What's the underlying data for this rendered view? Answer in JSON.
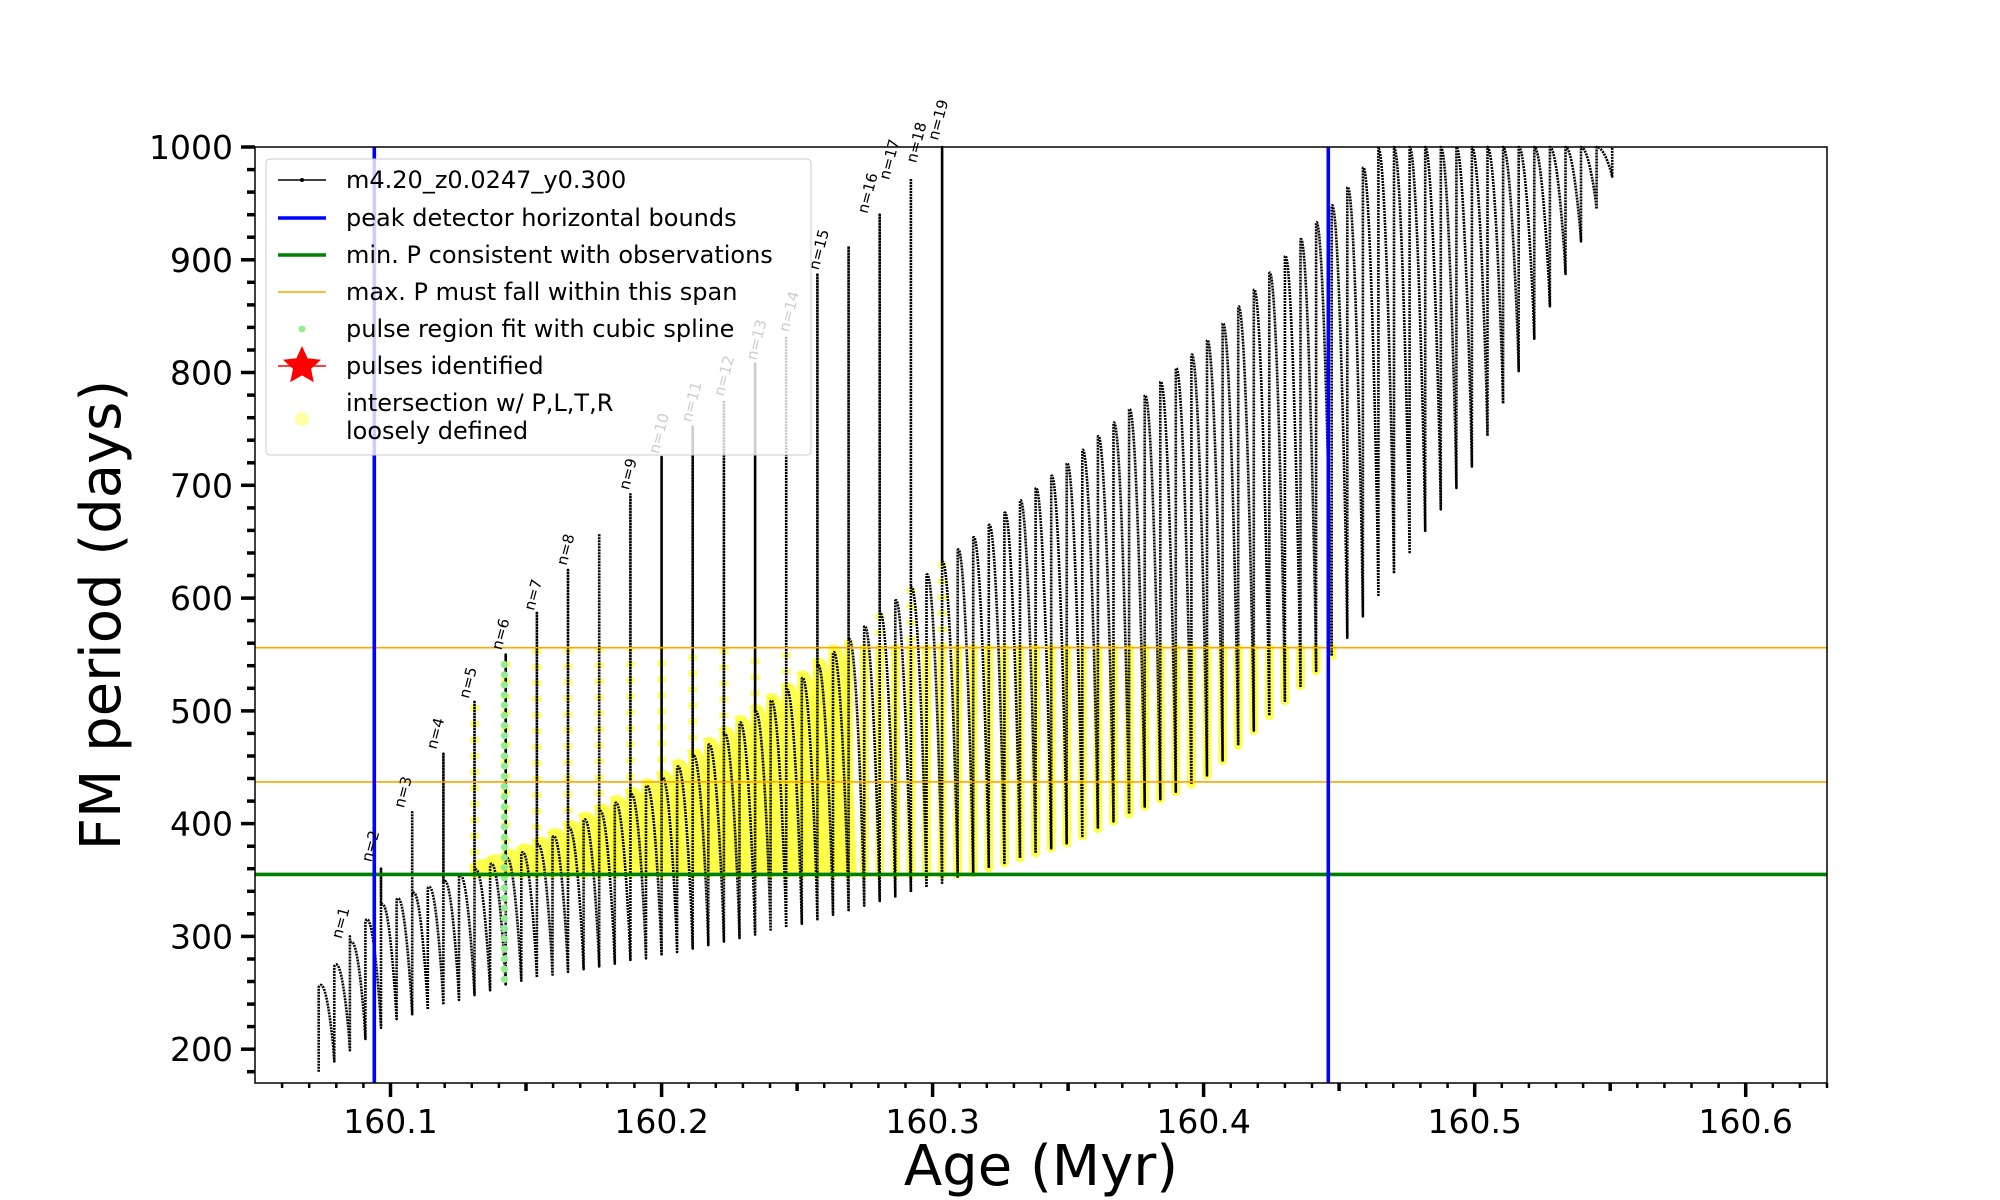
{
  "chart_data": {
    "type": "scatter",
    "title": "",
    "xlabel": "Age (Myr)",
    "ylabel": "FM period (days)",
    "xlim": [
      160.05,
      160.63
    ],
    "ylim": [
      170,
      1000
    ],
    "xticks": [
      "160.1",
      "160.2",
      "160.3",
      "160.4",
      "160.5",
      "160.6"
    ],
    "yticks": [
      "200",
      "300",
      "400",
      "500",
      "600",
      "700",
      "800",
      "900",
      "1000"
    ],
    "legend_position": "upper-left",
    "legend": [
      {
        "label": "m4.20_z0.0247_y0.300",
        "marker": "line-dot",
        "color": "#000000"
      },
      {
        "label": "peak detector horizontal bounds",
        "marker": "line",
        "color": "#0000ff"
      },
      {
        "label": "min. P consistent with observations",
        "marker": "line",
        "color": "#008000"
      },
      {
        "label": "max. P must fall within this span",
        "marker": "line",
        "color": "#ffa500"
      },
      {
        "label": "pulse region fit with cubic spline",
        "marker": "dot",
        "color": "#90ee90"
      },
      {
        "label": "pulses identified",
        "marker": "star",
        "color": "#ff0000"
      },
      {
        "label": "intersection w/ P,L,T,R",
        "label2": "loosely defined",
        "marker": "dot",
        "color": "#ffff66"
      }
    ],
    "vlines": [
      160.094,
      160.446
    ],
    "min_period_line": 355,
    "max_period_span": [
      437,
      556
    ],
    "pulse_labels": [
      {
        "text": "n=1",
        "x": 160.083,
        "y": 292
      },
      {
        "text": "n=2",
        "x": 160.094,
        "y": 360
      },
      {
        "text": "n=3",
        "x": 160.106,
        "y": 408
      },
      {
        "text": "n=4",
        "x": 160.118,
        "y": 460
      },
      {
        "text": "n=5",
        "x": 160.13,
        "y": 505
      },
      {
        "text": "n=6",
        "x": 160.142,
        "y": 548
      },
      {
        "text": "n=7",
        "x": 160.154,
        "y": 583
      },
      {
        "text": "n=8",
        "x": 160.166,
        "y": 623
      },
      {
        "text": "n=9",
        "x": 160.189,
        "y": 690
      },
      {
        "text": "n=10",
        "x": 160.2,
        "y": 722
      },
      {
        "text": "n=11",
        "x": 160.212,
        "y": 750
      },
      {
        "text": "n=12",
        "x": 160.224,
        "y": 773
      },
      {
        "text": "n=13",
        "x": 160.236,
        "y": 805
      },
      {
        "text": "n=14",
        "x": 160.248,
        "y": 830
      },
      {
        "text": "n=15",
        "x": 160.259,
        "y": 885
      },
      {
        "text": "n=16",
        "x": 160.277,
        "y": 935
      },
      {
        "text": "n=17",
        "x": 160.285,
        "y": 965
      },
      {
        "text": "n=18",
        "x": 160.295,
        "y": 980
      },
      {
        "text": "n=19",
        "x": 160.303,
        "y": 1000
      }
    ],
    "series": [
      {
        "name": "m4.20_z0.0247_y0.300",
        "type": "pulses",
        "x_start": 160.0735,
        "x_end": 160.554,
        "spacing": 0.00575,
        "trough_values": [
          {
            "x": 160.074,
            "y": 180
          },
          {
            "x": 160.1,
            "y": 225
          },
          {
            "x": 160.15,
            "y": 262
          },
          {
            "x": 160.2,
            "y": 283
          },
          {
            "x": 160.25,
            "y": 310
          },
          {
            "x": 160.3,
            "y": 345
          },
          {
            "x": 160.35,
            "y": 383
          },
          {
            "x": 160.4,
            "y": 440
          },
          {
            "x": 160.45,
            "y": 555
          },
          {
            "x": 160.5,
            "y": 720
          },
          {
            "x": 160.554,
            "y": 990
          }
        ],
        "envelope_values": [
          {
            "x": 160.074,
            "y": 255
          },
          {
            "x": 160.094,
            "y": 325
          },
          {
            "x": 160.15,
            "y": 375
          },
          {
            "x": 160.2,
            "y": 440
          },
          {
            "x": 160.25,
            "y": 525
          },
          {
            "x": 160.3,
            "y": 625
          },
          {
            "x": 160.35,
            "y": 720
          },
          {
            "x": 160.4,
            "y": 825
          },
          {
            "x": 160.45,
            "y": 955
          },
          {
            "x": 160.465,
            "y": 1000
          }
        ],
        "spike_values": [
          {
            "x": 160.083,
            "y": 300
          },
          {
            "x": 160.094,
            "y": 360
          },
          {
            "x": 160.106,
            "y": 410
          },
          {
            "x": 160.118,
            "y": 462
          },
          {
            "x": 160.13,
            "y": 508
          },
          {
            "x": 160.142,
            "y": 550
          },
          {
            "x": 160.154,
            "y": 588
          },
          {
            "x": 160.166,
            "y": 625
          },
          {
            "x": 160.177,
            "y": 657
          },
          {
            "x": 160.189,
            "y": 692
          },
          {
            "x": 160.2,
            "y": 725
          },
          {
            "x": 160.212,
            "y": 752
          },
          {
            "x": 160.224,
            "y": 775
          },
          {
            "x": 160.236,
            "y": 808
          },
          {
            "x": 160.248,
            "y": 832
          },
          {
            "x": 160.259,
            "y": 888
          },
          {
            "x": 160.271,
            "y": 912
          },
          {
            "x": 160.283,
            "y": 940
          },
          {
            "x": 160.294,
            "y": 972
          },
          {
            "x": 160.302,
            "y": 1000
          }
        ]
      }
    ]
  }
}
